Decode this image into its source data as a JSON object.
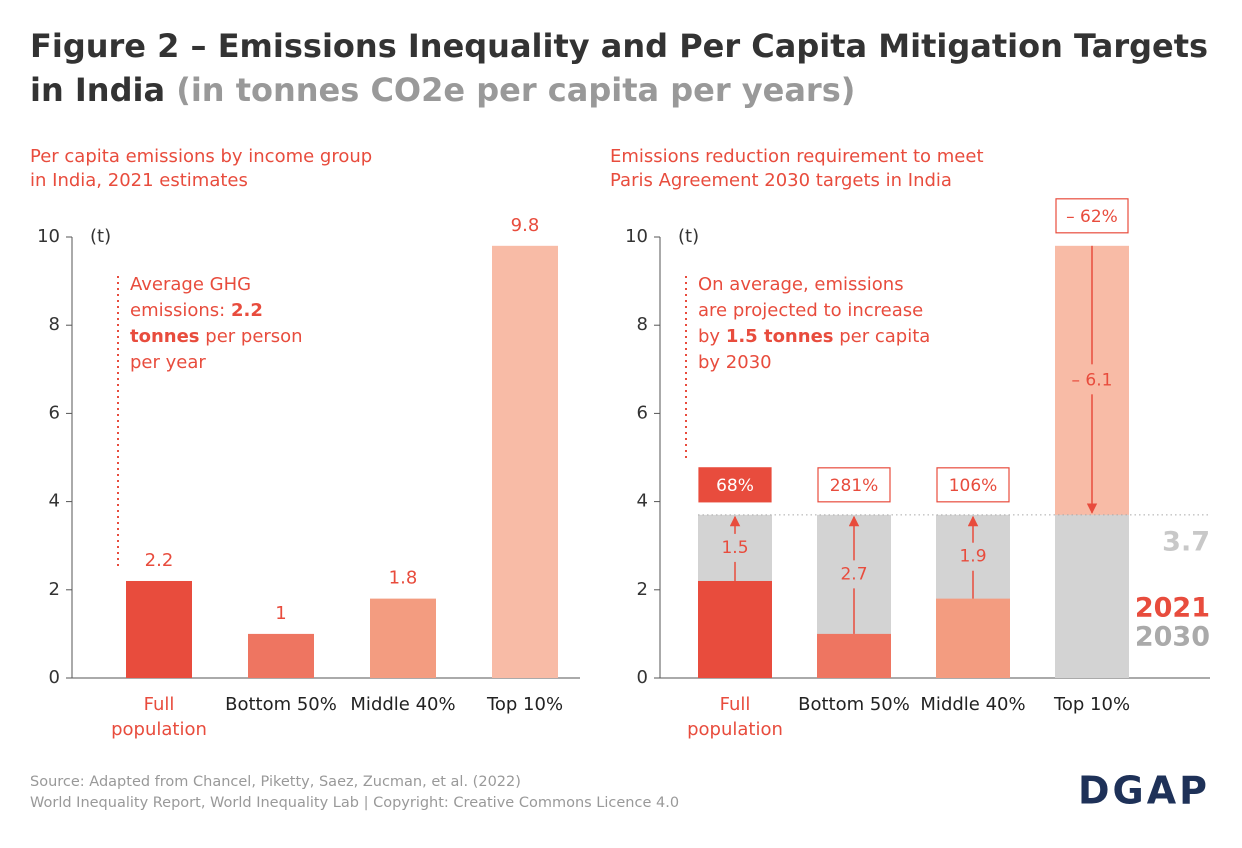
{
  "title": "Figure 2 – Emissions Inequality and Per Capita Mitigation Targets in India",
  "title_unit": "(in tonnes CO2e per capita per years)",
  "chart_data": [
    {
      "type": "bar",
      "subtitle": [
        "Per capita emissions by income group",
        "in India, 2021 estimates"
      ],
      "categories": [
        "Full population",
        "Bottom 50%",
        "Middle 40%",
        "Top 10%"
      ],
      "values": [
        2.2,
        1,
        1.8,
        9.8
      ],
      "colors": [
        "#e84c3d",
        "#ee7561",
        "#f39c80",
        "#f8bba6"
      ],
      "y_unit": "(t)",
      "ylim": [
        0,
        10
      ],
      "yticks": [
        0,
        2,
        4,
        6,
        8,
        10
      ],
      "annotation": [
        "Average GHG emissions:",
        "2.2 tonnes",
        "per person per year"
      ]
    },
    {
      "type": "target_bar",
      "subtitle": [
        "Emissions reduction requirement to meet",
        "Paris Agreement 2030 targets in India"
      ],
      "categories": [
        "Full population",
        "Bottom 50%",
        "Middle 40%",
        "Top 10%"
      ],
      "series": [
        {
          "name": "2021",
          "color": "#e84c3d",
          "values": [
            2.2,
            1,
            1.8,
            9.8
          ],
          "colors": [
            "#e84c3d",
            "#ee7561",
            "#f39c80",
            "#f8bba6"
          ]
        }
      ],
      "target": {
        "name": "2030",
        "value": 3.7,
        "color": "#d3d3d3"
      },
      "changes": {
        "values": [
          1.5,
          2.7,
          1.9,
          -6.1
        ],
        "value_labels": [
          "1.5",
          "2.7",
          "1.9",
          "– 6.1"
        ]
      },
      "change_percent": {
        "values": [
          68,
          281,
          106,
          -62
        ],
        "value_labels": [
          "68%",
          "281%",
          "106%",
          "– 62%"
        ]
      },
      "y_unit": "(t)",
      "ylim": [
        0,
        10
      ],
      "yticks": [
        0,
        2,
        4,
        6,
        8,
        10
      ],
      "annotation": [
        "On average, emissions are projected to increase by",
        "1.5 tonnes",
        "per capita by 2030"
      ]
    }
  ],
  "source": [
    "Source: Adapted from Chancel, Piketty, Saez, Zucman, et al. (2022)",
    "World Inequality Report, World Inequality Lab | Copyright: Creative Commons Licence 4.0"
  ],
  "logo": "DGAP"
}
